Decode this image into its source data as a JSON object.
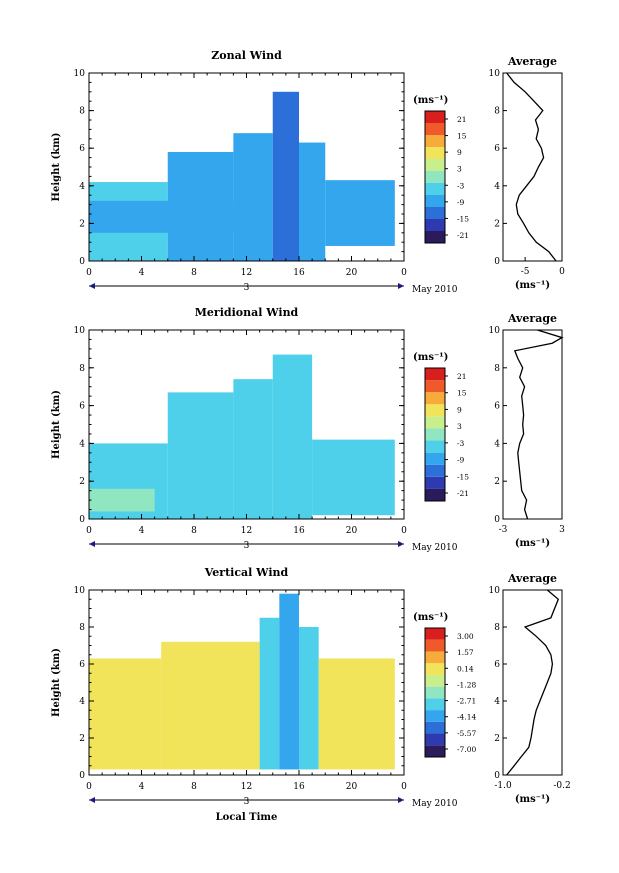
{
  "chart_data": [
    {
      "type": "heatmap",
      "title": "Zonal Wind",
      "xlabel": "",
      "ylabel": "Height (km)",
      "xlim": [
        0,
        24
      ],
      "ylim": [
        0,
        10
      ],
      "xticks": [
        "0",
        "4",
        "8",
        "12",
        "16",
        "20",
        "0"
      ],
      "yticks": [
        "0",
        "2",
        "4",
        "6",
        "8",
        "10"
      ],
      "date_label": "3",
      "date_right": "May 2010",
      "colorbar": {
        "unit": "(ms⁻¹)",
        "labels": [
          "21",
          "15",
          "9",
          "3",
          "-3",
          "-9",
          "-15",
          "-21"
        ],
        "min": -24,
        "max": 24
      },
      "columns": [
        {
          "x_start": 0,
          "x_end": 6,
          "y_bottom": 0,
          "y_top": 4.2,
          "value": -6
        },
        {
          "x_start": 0,
          "x_end": 11,
          "y_bottom": 1.5,
          "y_top": 3.2,
          "value": -10
        },
        {
          "x_start": 6,
          "x_end": 11,
          "y_bottom": 0,
          "y_top": 5.8,
          "value": -7
        },
        {
          "x_start": 11,
          "x_end": 14,
          "y_bottom": 0,
          "y_top": 6.8,
          "value": -9
        },
        {
          "x_start": 14,
          "x_end": 16,
          "y_bottom": 0,
          "y_top": 9.0,
          "value": -12
        },
        {
          "x_start": 16,
          "x_end": 18,
          "y_bottom": 0,
          "y_top": 6.3,
          "value": -9
        },
        {
          "x_start": 18,
          "x_end": 23.3,
          "y_bottom": 0.8,
          "y_top": 4.3,
          "value": -7
        }
      ],
      "profile": {
        "title": "Average",
        "xlabel": "(ms⁻¹)",
        "xlim": [
          -8,
          0
        ],
        "xticks": [
          "-5",
          "0"
        ],
        "heights": [
          0,
          0.5,
          1,
          1.5,
          2,
          2.5,
          3,
          3.5,
          4,
          4.5,
          5,
          5.5,
          6,
          6.5,
          7,
          7.5,
          8,
          8.5,
          9,
          9.5,
          10
        ],
        "values": [
          -0.8,
          -1.8,
          -3.5,
          -4.5,
          -5.2,
          -6.0,
          -6.2,
          -5.8,
          -4.8,
          -3.8,
          -3.2,
          -2.5,
          -2.8,
          -3.5,
          -3.2,
          -3.6,
          -2.6,
          -3.8,
          -5.0,
          -6.5,
          -7.5
        ]
      }
    },
    {
      "type": "heatmap",
      "title": "Meridional Wind",
      "xlabel": "",
      "ylabel": "Height (km)",
      "xlim": [
        0,
        24
      ],
      "ylim": [
        0,
        10
      ],
      "xticks": [
        "0",
        "4",
        "8",
        "12",
        "16",
        "20",
        "0"
      ],
      "yticks": [
        "0",
        "2",
        "4",
        "6",
        "8",
        "10"
      ],
      "date_label": "3",
      "date_right": "May 2010",
      "colorbar": {
        "unit": "(ms⁻¹)",
        "labels": [
          "21",
          "15",
          "9",
          "3",
          "-3",
          "-9",
          "-15",
          "-21"
        ],
        "min": -24,
        "max": 24
      },
      "columns": [
        {
          "x_start": 0,
          "x_end": 6,
          "y_bottom": 0,
          "y_top": 4.0,
          "value": -4
        },
        {
          "x_start": 0,
          "x_end": 5,
          "y_bottom": 0.4,
          "y_top": 1.6,
          "value": 1
        },
        {
          "x_start": 6,
          "x_end": 11,
          "y_bottom": 0,
          "y_top": 6.7,
          "value": -6
        },
        {
          "x_start": 11,
          "x_end": 14,
          "y_bottom": 0,
          "y_top": 7.4,
          "value": -5
        },
        {
          "x_start": 14,
          "x_end": 17,
          "y_bottom": 0,
          "y_top": 8.7,
          "value": -6
        },
        {
          "x_start": 17,
          "x_end": 23.3,
          "y_bottom": 0.2,
          "y_top": 4.2,
          "value": -5
        }
      ],
      "profile": {
        "title": "Average",
        "xlabel": "(ms⁻¹)",
        "xlim": [
          -3,
          3
        ],
        "xticks": [
          "-3",
          "3"
        ],
        "heights": [
          0,
          0.5,
          1,
          1.5,
          2,
          2.5,
          3,
          3.5,
          4,
          4.5,
          5,
          5.5,
          6,
          6.5,
          7,
          7.5,
          8,
          8.5,
          8.9,
          9.3,
          9.6,
          10
        ],
        "values": [
          -0.5,
          -0.8,
          -0.6,
          -1.1,
          -1.2,
          -1.3,
          -1.4,
          -1.5,
          -1.3,
          -0.9,
          -1.0,
          -0.9,
          -1.0,
          -1.1,
          -0.8,
          -1.3,
          -1.0,
          -1.5,
          -1.8,
          2.0,
          3.0,
          0.5
        ]
      }
    },
    {
      "type": "heatmap",
      "title": "Vertical Wind",
      "xlabel": "Local Time",
      "ylabel": "Height (km)",
      "xlim": [
        0,
        24
      ],
      "ylim": [
        0,
        10
      ],
      "xticks": [
        "0",
        "4",
        "8",
        "12",
        "16",
        "20",
        "0"
      ],
      "yticks": [
        "0",
        "2",
        "4",
        "6",
        "8",
        "10"
      ],
      "date_label": "3",
      "date_right": "May 2010",
      "colorbar": {
        "unit": "(ms⁻¹)",
        "labels": [
          "3.00",
          "1.57",
          "0.14",
          "-1.28",
          "-2.71",
          "-4.14",
          "-5.57",
          "-7.00"
        ],
        "min": -7.7,
        "max": 3.7
      },
      "columns": [
        {
          "x_start": 0,
          "x_end": 5.5,
          "y_bottom": 0.3,
          "y_top": 6.3,
          "value": 0.2
        },
        {
          "x_start": 5.5,
          "x_end": 13,
          "y_bottom": 0.3,
          "y_top": 7.2,
          "value": 0.1
        },
        {
          "x_start": 13,
          "x_end": 14.5,
          "y_bottom": 0.3,
          "y_top": 8.5,
          "value": -3.0
        },
        {
          "x_start": 14.5,
          "x_end": 16,
          "y_bottom": 0.3,
          "y_top": 9.8,
          "value": -4.5
        },
        {
          "x_start": 16,
          "x_end": 17.5,
          "y_bottom": 0.3,
          "y_top": 8.0,
          "value": -3.5
        },
        {
          "x_start": 17.5,
          "x_end": 23.3,
          "y_bottom": 0.3,
          "y_top": 6.3,
          "value": 0.1
        }
      ],
      "profile": {
        "title": "Average",
        "xlabel": "(ms⁻¹)",
        "xlim": [
          -1.0,
          -0.2
        ],
        "xticks": [
          "-1.0",
          "-0.2"
        ],
        "heights": [
          0,
          0.5,
          1,
          1.5,
          2,
          2.5,
          3,
          3.5,
          4,
          4.5,
          5,
          5.5,
          6,
          6.5,
          7,
          7.5,
          8,
          8.5,
          9,
          9.5,
          10
        ],
        "values": [
          -0.95,
          -0.85,
          -0.75,
          -0.65,
          -0.62,
          -0.6,
          -0.58,
          -0.55,
          -0.5,
          -0.45,
          -0.4,
          -0.35,
          -0.33,
          -0.35,
          -0.42,
          -0.55,
          -0.7,
          -0.35,
          -0.3,
          -0.25,
          -0.4
        ]
      }
    }
  ]
}
